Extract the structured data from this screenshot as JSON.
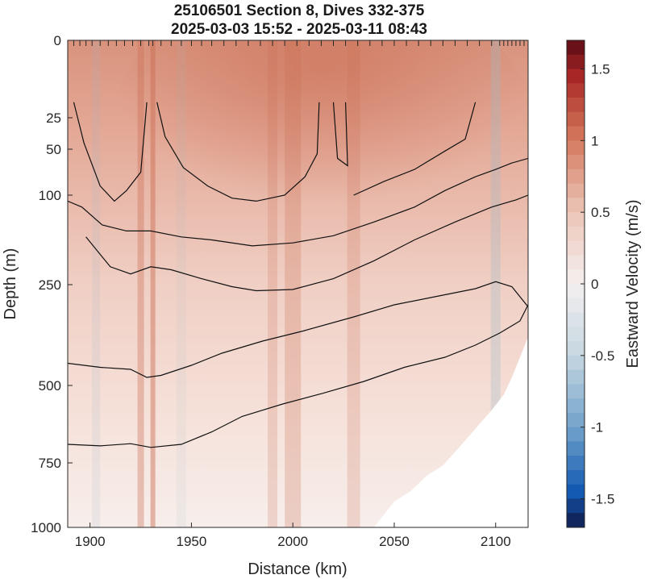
{
  "chart_data": {
    "type": "heatmap",
    "title": "25106501 Section 8, Dives 332-375",
    "subtitle": "2025-03-03 15:52 - 2025-03-11 08:43",
    "xlabel": "Distance (km)",
    "ylabel": "Depth (m)",
    "colorbar_label": "Eastward Velocity (m/s)",
    "xlim": [
      1889,
      2116
    ],
    "x_ticks": [
      1900,
      1950,
      2000,
      2050,
      2100
    ],
    "x_tick_labels": [
      "1900",
      "1950",
      "2000",
      "2050",
      "2100"
    ],
    "y_ticks": [
      0,
      25,
      50,
      100,
      250,
      500,
      750,
      1000
    ],
    "y_tick_labels": [
      "0",
      "25",
      "50",
      "100",
      "250",
      "500",
      "750",
      "1000"
    ],
    "ylim": [
      0,
      1000
    ],
    "clim": [
      -1.7,
      1.7
    ],
    "colorbar_ticks": [
      1.5,
      1,
      0.5,
      0,
      -0.5,
      -1,
      -1.5
    ],
    "colorbar_tick_labels": [
      "1.5",
      "1",
      "0.5",
      "0",
      "-0.5",
      "-1",
      "-1.5"
    ],
    "colormap": "diverging blue-white-red",
    "dive_marker_distances": [
      1892,
      1895,
      1898,
      1901,
      1905,
      1909,
      1913,
      1917,
      1921,
      1925,
      1929,
      1931,
      1935,
      1940,
      1945,
      1950,
      1955,
      1960,
      1966,
      1972,
      1978,
      1984,
      1990,
      1996,
      2002,
      2008,
      2014,
      2020,
      2026,
      2032,
      2038,
      2044,
      2050,
      2056,
      2062,
      2068,
      2074,
      2080,
      2086,
      2092,
      2098,
      2102,
      2104,
      2106,
      2108,
      2110,
      2112,
      2114
    ],
    "seafloor_depth": [
      [
        2040,
        1000
      ],
      [
        2050,
        900
      ],
      [
        2058,
        860
      ],
      [
        2066,
        800
      ],
      [
        2074,
        760
      ],
      [
        2082,
        700
      ],
      [
        2090,
        640
      ],
      [
        2098,
        580
      ],
      [
        2104,
        530
      ],
      [
        2108,
        480
      ],
      [
        2112,
        430
      ],
      [
        2116,
        380
      ]
    ],
    "contours": [
      [
        [
          1892,
          20
        ],
        [
          1897,
          45
        ],
        [
          1905,
          90
        ],
        [
          1912,
          110
        ],
        [
          1918,
          95
        ],
        [
          1925,
          75
        ],
        [
          1928,
          20
        ]
      ],
      [
        [
          1933,
          20
        ],
        [
          1937,
          40
        ],
        [
          1946,
          70
        ],
        [
          1958,
          90
        ],
        [
          1970,
          105
        ],
        [
          1982,
          110
        ],
        [
          1996,
          100
        ],
        [
          2006,
          80
        ],
        [
          2012,
          55
        ],
        [
          2013,
          20
        ]
      ],
      [
        [
          2020,
          20
        ],
        [
          2022,
          60
        ],
        [
          2027,
          68
        ],
        [
          2026,
          20
        ]
      ],
      [
        [
          2090,
          20
        ],
        [
          2085,
          42
        ],
        [
          2075,
          52
        ],
        [
          2060,
          72
        ],
        [
          2045,
          85
        ],
        [
          2030,
          100
        ]
      ],
      [
        [
          1889,
          110
        ],
        [
          1896,
          120
        ],
        [
          1906,
          150
        ],
        [
          1918,
          160
        ],
        [
          1930,
          160
        ],
        [
          1945,
          170
        ],
        [
          1960,
          175
        ],
        [
          1980,
          185
        ],
        [
          2000,
          180
        ],
        [
          2020,
          168
        ],
        [
          2040,
          145
        ],
        [
          2060,
          120
        ],
        [
          2075,
          95
        ],
        [
          2090,
          80
        ],
        [
          2100,
          72
        ],
        [
          2108,
          65
        ],
        [
          2116,
          60
        ]
      ],
      [
        [
          1898,
          170
        ],
        [
          1910,
          220
        ],
        [
          1920,
          232
        ],
        [
          1930,
          220
        ],
        [
          1940,
          225
        ],
        [
          1955,
          240
        ],
        [
          1970,
          255
        ],
        [
          1982,
          265
        ],
        [
          2000,
          262
        ],
        [
          2020,
          240
        ],
        [
          2040,
          210
        ],
        [
          2060,
          175
        ],
        [
          2080,
          145
        ],
        [
          2098,
          120
        ],
        [
          2110,
          108
        ],
        [
          2116,
          100
        ]
      ],
      [
        [
          1889,
          445
        ],
        [
          1905,
          455
        ],
        [
          1920,
          460
        ],
        [
          1928,
          480
        ],
        [
          1935,
          475
        ],
        [
          1950,
          450
        ],
        [
          1965,
          420
        ],
        [
          1985,
          390
        ],
        [
          2005,
          365
        ],
        [
          2030,
          330
        ],
        [
          2050,
          300
        ],
        [
          2070,
          280
        ],
        [
          2090,
          260
        ],
        [
          2100,
          245
        ],
        [
          2108,
          255
        ],
        [
          2116,
          305
        ]
      ],
      [
        [
          1889,
          690
        ],
        [
          1905,
          695
        ],
        [
          1920,
          688
        ],
        [
          1930,
          700
        ],
        [
          1945,
          690
        ],
        [
          1960,
          650
        ],
        [
          1975,
          600
        ],
        [
          1995,
          560
        ],
        [
          2015,
          525
        ],
        [
          2035,
          490
        ],
        [
          2055,
          455
        ],
        [
          2075,
          430
        ],
        [
          2090,
          400
        ],
        [
          2102,
          370
        ],
        [
          2112,
          340
        ],
        [
          2116,
          300
        ]
      ]
    ]
  }
}
